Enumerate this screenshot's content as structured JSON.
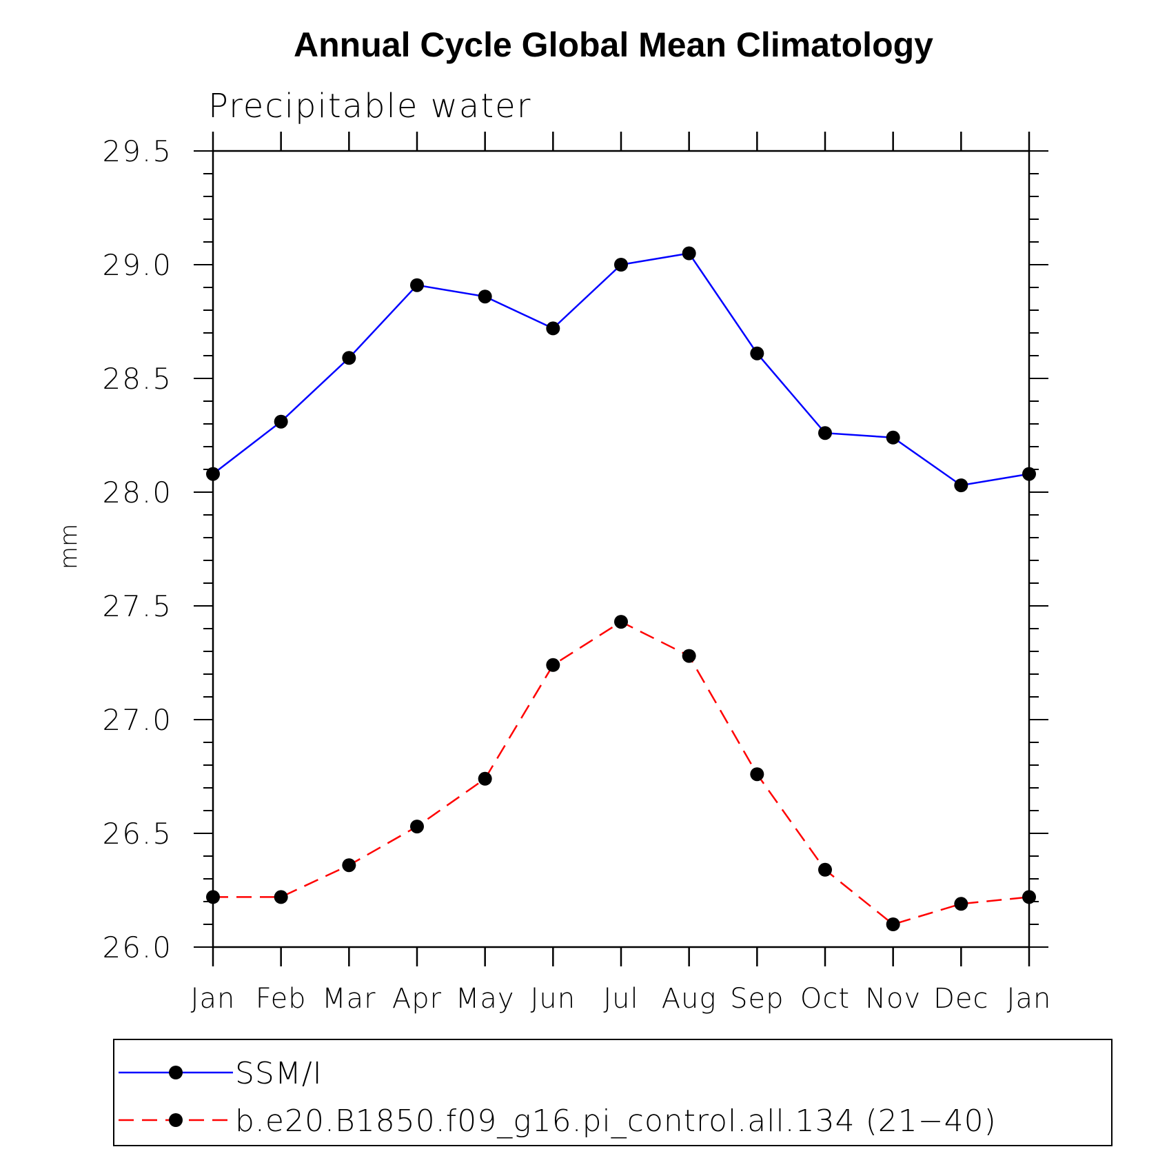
{
  "chart_data": {
    "type": "line",
    "title": "Annual Cycle Global Mean Climatology",
    "subtitle": "Precipitable water",
    "ylabel": "mm",
    "xlabel": "",
    "categories": [
      "Jan",
      "Feb",
      "Mar",
      "Apr",
      "May",
      "Jun",
      "Jul",
      "Aug",
      "Sep",
      "Oct",
      "Nov",
      "Dec",
      "Jan"
    ],
    "ylim": [
      26.0,
      29.5
    ],
    "yticks": [
      "26.0",
      "26.5",
      "27.0",
      "27.5",
      "28.0",
      "28.5",
      "29.0",
      "29.5"
    ],
    "legend_position": "bottom",
    "series": [
      {
        "name": "SSM/I",
        "color": "#0000ff",
        "line_style": "solid",
        "marker": "filled-circle",
        "values": [
          28.08,
          28.31,
          28.59,
          28.91,
          28.86,
          28.72,
          29.0,
          29.05,
          28.61,
          28.26,
          28.24,
          28.03,
          28.08
        ]
      },
      {
        "name": "b.e20.B1850.f09_g16.pi_control.all.134 (21−40)",
        "color": "#ff0000",
        "line_style": "dashed",
        "marker": "filled-circle",
        "values": [
          26.22,
          26.22,
          26.36,
          26.53,
          26.74,
          27.24,
          27.43,
          27.28,
          26.76,
          26.34,
          26.1,
          26.19,
          26.22
        ]
      }
    ]
  }
}
